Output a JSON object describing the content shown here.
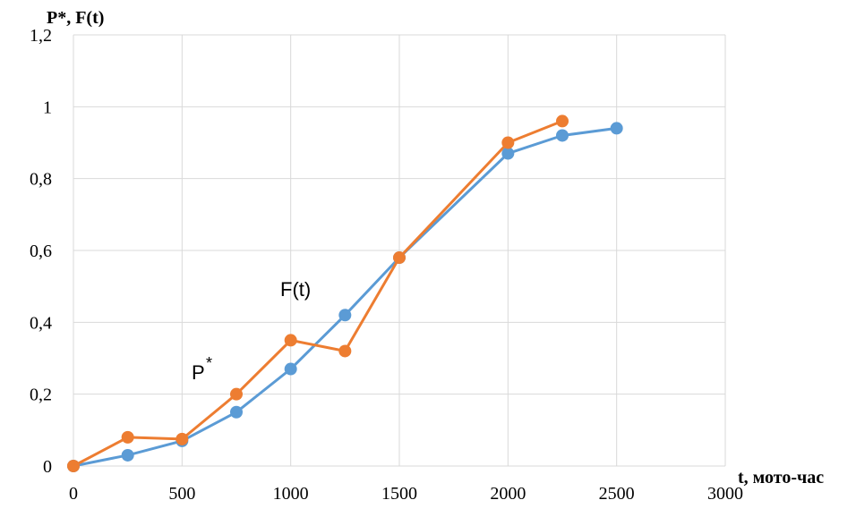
{
  "chart_data": {
    "type": "line",
    "ylabel": "P*, F(t)",
    "xlabel": "t, мото-час",
    "xlim": [
      0,
      3000
    ],
    "ylim": [
      0,
      1.2
    ],
    "x_ticks": [
      "0",
      "500",
      "1000",
      "1500",
      "2000",
      "2500",
      "3000"
    ],
    "y_ticks": [
      "0",
      "0,2",
      "0,4",
      "0,6",
      "0,8",
      "1",
      "1,2"
    ],
    "grid": true,
    "annotations": {
      "f_label": "F(t)",
      "p_label": "P",
      "p_sup": "*"
    },
    "colors": {
      "F": "#5b9bd5",
      "P": "#ed7d31",
      "grid": "#d9d9d9"
    },
    "series": [
      {
        "key": "F",
        "x": [
          0,
          250,
          500,
          750,
          1000,
          1250,
          1500,
          2000,
          2250,
          2500
        ],
        "values": [
          0,
          0.03,
          0.07,
          0.15,
          0.27,
          0.42,
          0.58,
          0.87,
          0.92,
          0.94
        ]
      },
      {
        "key": "P",
        "x": [
          0,
          250,
          500,
          750,
          1000,
          1250,
          1500,
          2000,
          2250
        ],
        "values": [
          0,
          0.08,
          0.075,
          0.2,
          0.35,
          0.32,
          0.58,
          0.9,
          0.96
        ]
      }
    ]
  }
}
